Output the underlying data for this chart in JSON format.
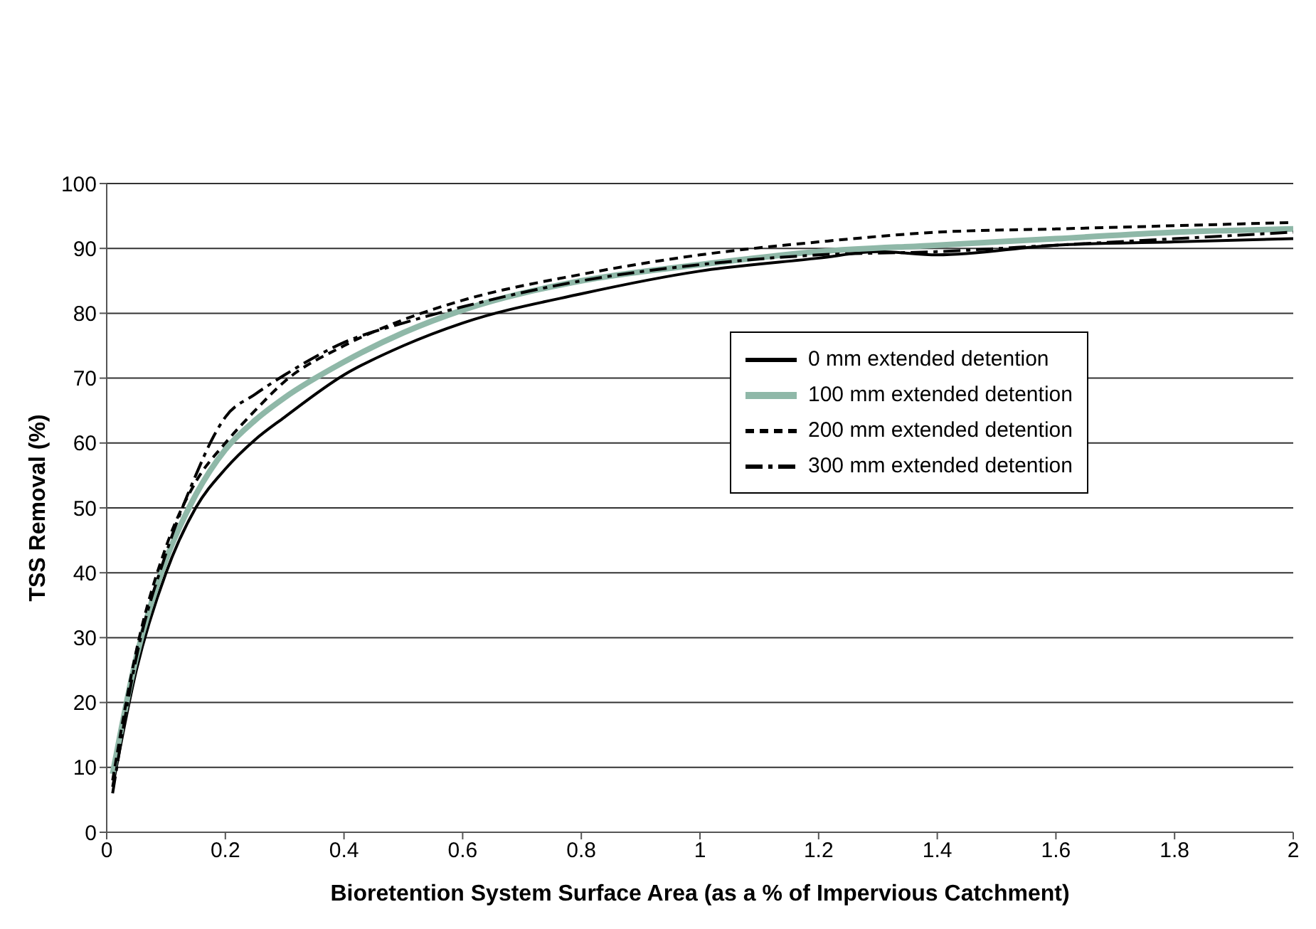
{
  "chart_data": {
    "type": "line",
    "xlabel": "Bioretention System Surface Area (as a % of Impervious Catchment)",
    "ylabel": "TSS Removal (%)",
    "xlim": [
      0,
      2
    ],
    "xticks": [
      0,
      0.2,
      0.4,
      0.6,
      0.8,
      1,
      1.2,
      1.4,
      1.6,
      1.8,
      2
    ],
    "ylim": [
      0,
      100
    ],
    "yticks": [
      0,
      10,
      20,
      30,
      40,
      50,
      60,
      70,
      80,
      90,
      100
    ],
    "grid": "y",
    "legend": "right",
    "marker": "none",
    "series": [
      {
        "name": "0 mm extended detention",
        "color": "#000000",
        "line_style": "solid",
        "x": [
          0.01,
          0.05,
          0.1,
          0.15,
          0.2,
          0.25,
          0.3,
          0.4,
          0.5,
          0.6,
          0.8,
          1,
          1.2,
          1.3,
          1.4,
          1.6,
          1.8,
          2
        ],
        "values": [
          7,
          25,
          40,
          50,
          56,
          60.5,
          64,
          70.5,
          75,
          78.5,
          83,
          86.5,
          88.5,
          89.5,
          89,
          90.5,
          91,
          91.5
        ]
      },
      {
        "name": "100 mm extended detention",
        "color": "#8fb8a8",
        "line_style": "solid",
        "x": [
          0.01,
          0.05,
          0.1,
          0.15,
          0.2,
          0.25,
          0.3,
          0.4,
          0.5,
          0.6,
          0.8,
          1,
          1.2,
          1.4,
          1.6,
          1.8,
          2
        ],
        "values": [
          9,
          27,
          42,
          52,
          59,
          63.5,
          67,
          72.5,
          77,
          80.5,
          85,
          87.5,
          89.5,
          90.5,
          91.5,
          92.5,
          93
        ]
      },
      {
        "name": "200 mm extended detention",
        "color": "#000000",
        "line_style": "dashed",
        "x": [
          0.01,
          0.05,
          0.1,
          0.15,
          0.2,
          0.25,
          0.3,
          0.4,
          0.5,
          0.6,
          0.8,
          1,
          1.2,
          1.4,
          1.6,
          1.8,
          2
        ],
        "values": [
          8,
          28,
          44,
          54,
          60,
          65,
          69.5,
          75,
          79,
          82,
          86,
          89,
          91,
          92.5,
          93,
          93.5,
          94
        ]
      },
      {
        "name": "300 mm extended detention",
        "color": "#000000",
        "line_style": "dashdot",
        "x": [
          0.01,
          0.05,
          0.1,
          0.15,
          0.18,
          0.2,
          0.25,
          0.3,
          0.4,
          0.5,
          0.6,
          0.8,
          1,
          1.2,
          1.4,
          1.6,
          1.8,
          2
        ],
        "values": [
          6,
          27,
          43,
          55,
          61,
          64,
          67.5,
          70.5,
          75.5,
          78.5,
          81,
          85,
          87.5,
          89,
          89.5,
          90.5,
          91.5,
          92.5
        ]
      }
    ]
  }
}
